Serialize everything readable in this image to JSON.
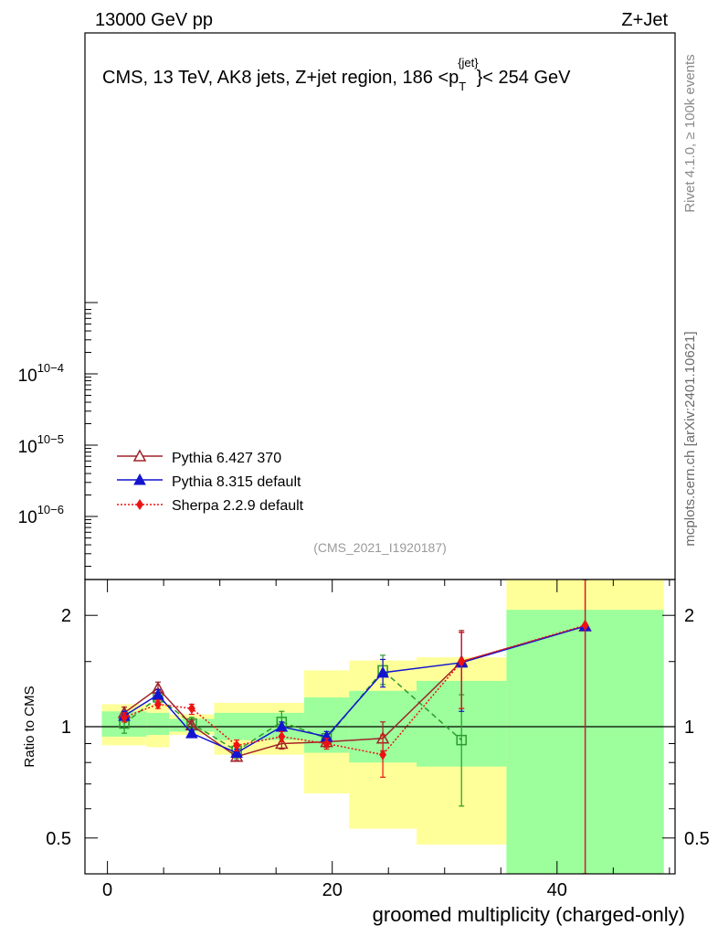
{
  "header": {
    "left": "13000 GeV pp",
    "right": "Z+Jet"
  },
  "title": {
    "prefix": "CMS, 13 TeV, AK8 jets, Z+jet region, 186 <p",
    "sub": "T",
    "sup": "{jet}",
    "suffix": "}< 254 GeV"
  },
  "side_labels": {
    "rivet": "Rivet 4.1.0, ≥ 100k events",
    "mcplots": "mcplots.cern.ch [arXiv:2401.10621]"
  },
  "analysis_id": "(CMS_2021_I1920187)",
  "colors": {
    "pythia6": "#a0242a",
    "pythia8": "#1414d0",
    "sherpa": "#ee1111",
    "cms": "#2a9a2a",
    "band_inner": "#9cff9c",
    "band_outer": "#ffff99"
  },
  "chart_data": [
    {
      "type": "line",
      "panel": "main",
      "yscale": "log",
      "ytick_labels": [
        "10−6",
        "10−5",
        "10−4"
      ],
      "ytick_values": [
        1e-06,
        1e-05,
        0.0001
      ],
      "legend_position": "lower-left",
      "series": [
        {
          "name": "Pythia 6.427 370",
          "marker": "open-triangle",
          "style": "solid"
        },
        {
          "name": "Pythia 8.315 default",
          "marker": "filled-triangle",
          "style": "solid"
        },
        {
          "name": "Sherpa 2.2.9 default",
          "marker": "diamond",
          "style": "dotted"
        }
      ]
    },
    {
      "type": "line",
      "panel": "ratio",
      "ylabel": "Ratio to CMS",
      "xlabel": "groomed multiplicity (charged-only)",
      "xlim": [
        -2,
        50.5
      ],
      "ylim": [
        0.4,
        2.5
      ],
      "yscale": "log",
      "xticks": [
        0,
        20,
        40
      ],
      "yticks": [
        0.5,
        1,
        2
      ],
      "ytick_labels": [
        "0.5",
        "1",
        "2"
      ],
      "bands": [
        {
          "x0": -0.5,
          "x1": 3.5,
          "inner": [
            0.94,
            1.1
          ],
          "outer": [
            0.89,
            1.15
          ]
        },
        {
          "x0": 3.5,
          "x1": 5.5,
          "inner": [
            0.95,
            1.09
          ],
          "outer": [
            0.88,
            1.15
          ]
        },
        {
          "x0": 5.5,
          "x1": 9.5,
          "inner": [
            0.97,
            1.05
          ],
          "outer": [
            0.95,
            1.08
          ]
        },
        {
          "x0": 9.5,
          "x1": 17.5,
          "inner": [
            0.92,
            1.09
          ],
          "outer": [
            0.84,
            1.16
          ]
        },
        {
          "x0": 17.5,
          "x1": 21.5,
          "inner": [
            0.85,
            1.2
          ],
          "outer": [
            0.66,
            1.42
          ]
        },
        {
          "x0": 21.5,
          "x1": 27.5,
          "inner": [
            0.8,
            1.25
          ],
          "outer": [
            0.53,
            1.51
          ]
        },
        {
          "x0": 27.5,
          "x1": 35.5,
          "inner": [
            0.78,
            1.33
          ],
          "outer": [
            0.48,
            1.54
          ]
        },
        {
          "x0": 35.5,
          "x1": 49.5,
          "inner": [
            0.4,
            2.07
          ],
          "outer": [
            0.4,
            2.5
          ]
        }
      ],
      "series": [
        {
          "name": "CMS",
          "marker": "open-square",
          "style": "dashed",
          "x": [
            1.5,
            4.5,
            7.5,
            11.5,
            15.5,
            19.5,
            24.5,
            31.5
          ],
          "y": [
            1.02,
            1.2,
            1.02,
            0.86,
            1.03,
            0.93,
            1.42,
            0.92
          ],
          "err_lo": [
            0.96,
            1.14,
            0.97,
            0.82,
            0.97,
            0.89,
            1.3,
            0.61
          ],
          "err_hi": [
            1.06,
            1.26,
            1.06,
            0.9,
            1.1,
            0.97,
            1.56,
            1.22
          ]
        },
        {
          "name": "Pythia 6.427 370",
          "marker": "open-triangle",
          "style": "solid",
          "x": [
            1.5,
            4.5,
            7.5,
            11.5,
            15.5,
            19.5,
            24.5,
            31.5,
            42.5
          ],
          "y": [
            1.09,
            1.27,
            1.01,
            0.83,
            0.9,
            0.91,
            0.93,
            1.5,
            1.87
          ],
          "err_lo": [
            1.05,
            1.23,
            0.98,
            0.81,
            0.87,
            0.88,
            0.86,
            1.12,
            0.35
          ],
          "err_hi": [
            1.13,
            1.32,
            1.04,
            0.85,
            0.94,
            0.94,
            1.03,
            1.82,
            2.5
          ]
        },
        {
          "name": "Pythia 8.315 default",
          "marker": "filled-triangle",
          "style": "solid",
          "x": [
            1.5,
            4.5,
            7.5,
            11.5,
            15.5,
            19.5,
            24.5,
            31.5,
            42.5
          ],
          "y": [
            1.07,
            1.22,
            0.96,
            0.85,
            1.0,
            0.94,
            1.4,
            1.49,
            1.87
          ],
          "err_lo": [
            1.04,
            1.18,
            0.94,
            0.83,
            0.97,
            0.91,
            1.28,
            1.1,
            0.35
          ],
          "err_hi": [
            1.1,
            1.26,
            0.98,
            0.87,
            1.03,
            0.97,
            1.52,
            1.8,
            2.5
          ]
        },
        {
          "name": "Sherpa 2.2.9 default",
          "marker": "diamond",
          "style": "dotted",
          "x": [
            1.5,
            4.5,
            7.5,
            11.5,
            15.5,
            19.5,
            24.5,
            31.5,
            42.5
          ],
          "y": [
            1.06,
            1.15,
            1.12,
            0.89,
            0.94,
            0.9,
            0.84,
            1.5,
            1.88
          ],
          "err_lo": [
            1.03,
            1.12,
            1.08,
            0.86,
            0.91,
            0.87,
            0.73,
            1.12,
            0.35
          ],
          "err_hi": [
            1.09,
            1.18,
            1.15,
            0.92,
            0.97,
            0.93,
            0.95,
            1.8,
            2.5
          ]
        }
      ]
    }
  ]
}
